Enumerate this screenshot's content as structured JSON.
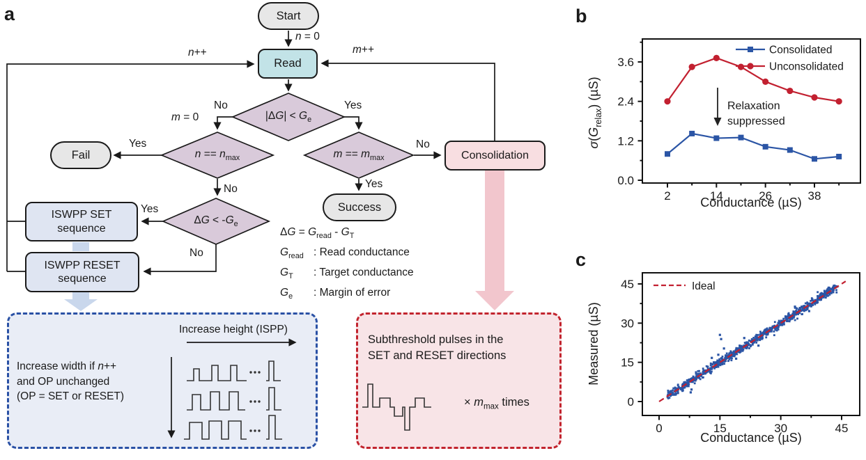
{
  "panels": {
    "a": "a",
    "b": "b",
    "c": "c"
  },
  "flowchart": {
    "nodes": {
      "start": "Start",
      "read": "Read",
      "fail": "Fail",
      "success": "Success",
      "consolidation": "Consolidation",
      "iswpp_set_line1": "ISWPP SET",
      "iswpp_set_line2": "sequence",
      "iswpp_reset_line1": "ISWPP RESET",
      "iswpp_reset_line2": "sequence"
    },
    "decisions": {
      "dg_lt_ge": [
        {
          "t": "|Δ"
        },
        {
          "t": "G",
          "i": 1
        },
        {
          "t": "| < "
        },
        {
          "t": "G",
          "i": 1
        },
        {
          "t": "e",
          "sub": 1
        }
      ],
      "n_eq_nmax": [
        {
          "t": "n",
          "i": 1
        },
        {
          "t": " == "
        },
        {
          "t": "n",
          "i": 1
        },
        {
          "t": "max",
          "sub": 1
        }
      ],
      "m_eq_mmax": [
        {
          "t": "m",
          "i": 1
        },
        {
          "t": " == "
        },
        {
          "t": "m",
          "i": 1
        },
        {
          "t": "max",
          "sub": 1
        }
      ],
      "dg_lt_neg_ge": [
        {
          "t": "Δ"
        },
        {
          "t": "G",
          "i": 1
        },
        {
          "t": " < -"
        },
        {
          "t": "G",
          "i": 1
        },
        {
          "t": "e",
          "sub": 1
        }
      ]
    },
    "edge_labels": {
      "yes": "Yes",
      "no": "No",
      "n_eq_0": [
        {
          "t": "n",
          "i": 1
        },
        {
          "t": " = 0"
        }
      ],
      "m_eq_0": [
        {
          "t": "m",
          "i": 1
        },
        {
          "t": " = 0"
        }
      ],
      "n_pp": [
        {
          "t": "n",
          "i": 1
        },
        {
          "t": "++"
        }
      ],
      "m_pp": [
        {
          "t": "m",
          "i": 1
        },
        {
          "t": "++"
        }
      ]
    },
    "definitions": [
      {
        "term": [
          {
            "t": "Δ"
          },
          {
            "t": "G",
            "i": 1
          },
          {
            "t": " = "
          },
          {
            "t": "G",
            "i": 1
          },
          {
            "t": "read",
            "sub": 1
          },
          {
            "t": " - "
          },
          {
            "t": "G",
            "i": 1
          },
          {
            "t": "T",
            "sub": 1
          }
        ],
        "desc": ""
      },
      {
        "term": [
          {
            "t": "G",
            "i": 1
          },
          {
            "t": "read",
            "sub": 1
          }
        ],
        "desc": ": Read conductance"
      },
      {
        "term": [
          {
            "t": "G",
            "i": 1
          },
          {
            "t": "T",
            "sub": 1
          }
        ],
        "desc": ": Target conductance"
      },
      {
        "term": [
          {
            "t": "G",
            "i": 1
          },
          {
            "t": "e",
            "sub": 1
          }
        ],
        "desc": ": Margin of error"
      }
    ],
    "ispp_box": {
      "arrow_label": "Increase height (ISPP)",
      "left_lines": [
        [
          {
            "t": "Increase width if "
          },
          {
            "t": "n",
            "i": 1
          },
          {
            "t": "++"
          }
        ],
        [
          {
            "t": "and OP unchanged"
          }
        ],
        [
          {
            "t": "(OP = SET or RESET)"
          }
        ]
      ]
    },
    "subthreshold_box": {
      "line1": "Subthreshold pulses in the",
      "line2": "SET and RESET directions",
      "times": [
        {
          "t": "× "
        },
        {
          "t": "m",
          "i": 1
        },
        {
          "t": "max",
          "sub": 1
        },
        {
          "t": " times"
        }
      ]
    },
    "colors": {
      "read_fill": "#c2e3e7",
      "terminal_fill": "#e7e7e7",
      "decision_fill": "#d9cada",
      "consolidation_fill": "#f8dee1",
      "iswpp_fill": "#dfe5f2",
      "blue_arrow": "#c9d7ec",
      "pink_arrow": "#f2c6cd"
    }
  },
  "chart_data": [
    {
      "id": "b",
      "type": "line",
      "xlabel": "Conductance (µS)",
      "ylabel": "σ(G_relax) (µS)",
      "ylabel_rich": [
        {
          "t": "σ",
          "i": 1
        },
        {
          "t": "("
        },
        {
          "t": "G",
          "i": 1
        },
        {
          "t": "relax",
          "sub": 1
        },
        {
          "t": ") (µS)"
        }
      ],
      "x": [
        2,
        8,
        14,
        20,
        26,
        32,
        38,
        44
      ],
      "series": [
        {
          "name": "Consolidated",
          "color": "#2b55a5",
          "marker": "square",
          "values": [
            0.8,
            1.42,
            1.28,
            1.3,
            1.02,
            0.92,
            0.65,
            0.72
          ]
        },
        {
          "name": "Unconsolidated",
          "color": "#c22030",
          "marker": "circle",
          "values": [
            2.4,
            3.45,
            3.72,
            3.45,
            3.0,
            2.72,
            2.52,
            2.4
          ]
        }
      ],
      "x_ticks": {
        "major": [
          2,
          14,
          26,
          38
        ],
        "minor": [
          8,
          20,
          32,
          44
        ],
        "labels": [
          "2",
          "14",
          "26",
          "38"
        ]
      },
      "y_ticks": {
        "major": [
          0,
          1.2,
          2.4,
          3.6
        ],
        "minor": [
          0.6,
          1.8,
          3.0,
          4.2
        ],
        "labels": [
          "0.0",
          "1.2",
          "2.4",
          "3.6"
        ]
      },
      "xlim": [
        -4,
        49
      ],
      "ylim": [
        0,
        4.3
      ],
      "legend_position": "top-right",
      "annotation": {
        "line1": "Relaxation",
        "line2": "suppressed"
      }
    },
    {
      "id": "c",
      "type": "scatter",
      "xlabel": "Conductance (µS)",
      "ylabel": "Measured (µS)",
      "x_ticks": {
        "major": [
          0,
          15,
          30,
          45
        ],
        "minor": [
          7.5,
          22.5,
          37.5
        ],
        "labels": [
          "0",
          "15",
          "30",
          "45"
        ]
      },
      "y_ticks": {
        "major": [
          0,
          15,
          30,
          45
        ],
        "minor": [
          7.5,
          22.5,
          37.5
        ],
        "labels": [
          "0",
          "15",
          "30",
          "45"
        ]
      },
      "xlim": [
        -5,
        50
      ],
      "ylim": [
        -5,
        50
      ],
      "ideal_line": {
        "label": "Ideal",
        "color": "#c22030",
        "from": [
          0,
          0
        ],
        "to": [
          46,
          46
        ]
      },
      "scatter": {
        "color": "#2b55a5",
        "n": 880,
        "x_min": 2,
        "x_max": 44,
        "noise_sigma": 0.8,
        "seed": 11,
        "outliers": [
          [
            15,
            25.5
          ],
          [
            15.3,
            23.9
          ],
          [
            16,
            20.3
          ],
          [
            8,
            4.6
          ],
          [
            13,
            16.7
          ],
          [
            24.5,
            21.4
          ],
          [
            21,
            24.3
          ],
          [
            37,
            34.6
          ],
          [
            33.5,
            36.3
          ],
          [
            7.8,
            3.5
          ],
          [
            14.6,
            17.9
          ],
          [
            19,
            16.4
          ]
        ]
      }
    }
  ]
}
